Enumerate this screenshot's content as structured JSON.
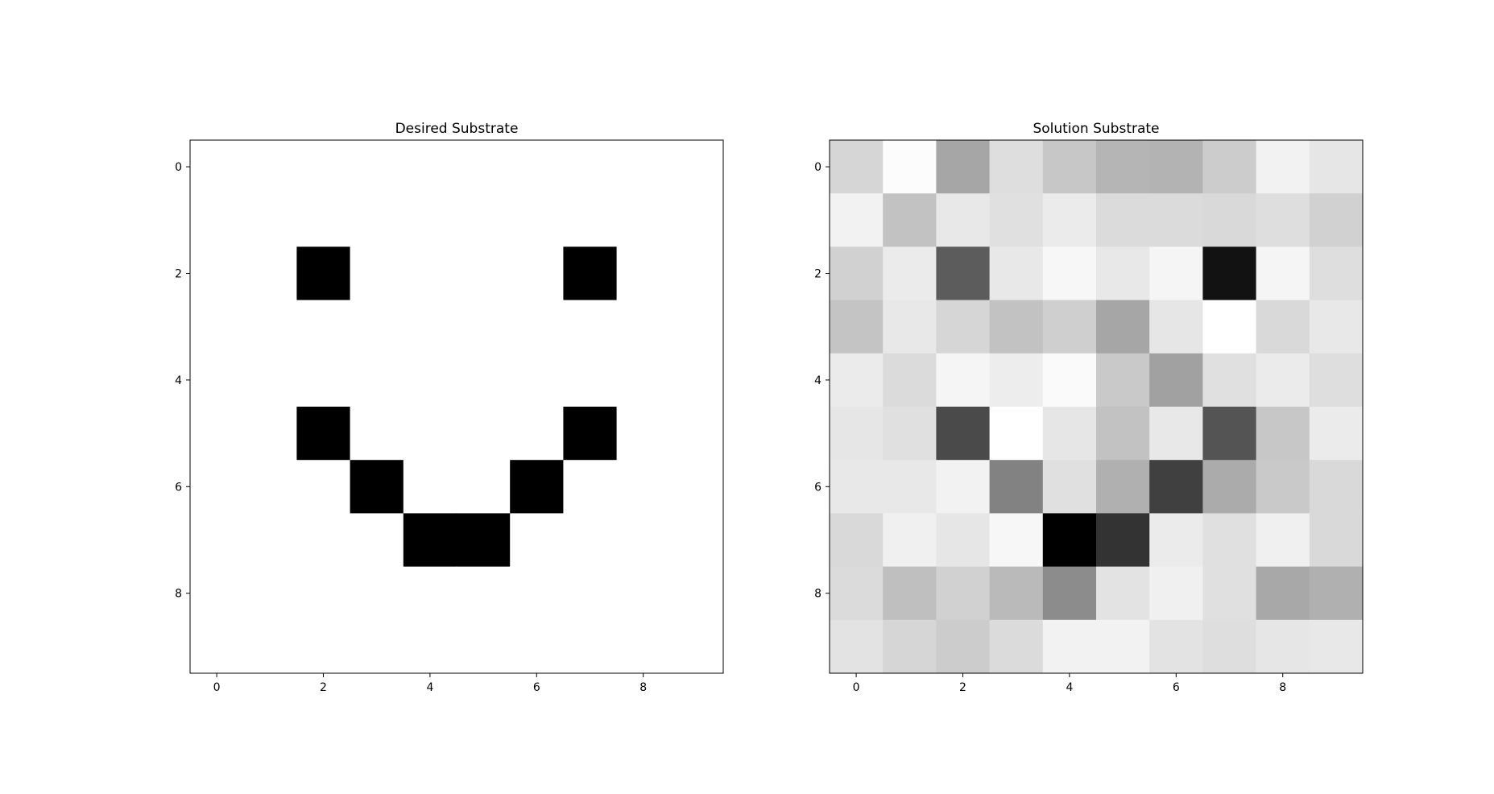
{
  "chart_data": [
    {
      "type": "heatmap",
      "title": "Desired Substrate",
      "colormap": "gray",
      "xticks": [
        "0",
        "2",
        "4",
        "6",
        "8"
      ],
      "yticks": [
        "0",
        "2",
        "4",
        "6",
        "8"
      ],
      "xlim": [
        -0.5,
        9.5
      ],
      "ylim": [
        9.5,
        -0.5
      ],
      "values": [
        [
          1,
          1,
          1,
          1,
          1,
          1,
          1,
          1,
          1,
          1
        ],
        [
          1,
          1,
          1,
          1,
          1,
          1,
          1,
          1,
          1,
          1
        ],
        [
          1,
          1,
          0,
          1,
          1,
          1,
          1,
          0,
          1,
          1
        ],
        [
          1,
          1,
          1,
          1,
          1,
          1,
          1,
          1,
          1,
          1
        ],
        [
          1,
          1,
          1,
          1,
          1,
          1,
          1,
          1,
          1,
          1
        ],
        [
          1,
          1,
          0,
          1,
          1,
          1,
          1,
          0,
          1,
          1
        ],
        [
          1,
          1,
          1,
          0,
          1,
          1,
          0,
          1,
          1,
          1
        ],
        [
          1,
          1,
          1,
          1,
          0,
          0,
          1,
          1,
          1,
          1
        ],
        [
          1,
          1,
          1,
          1,
          1,
          1,
          1,
          1,
          1,
          1
        ],
        [
          1,
          1,
          1,
          1,
          1,
          1,
          1,
          1,
          1,
          1
        ]
      ]
    },
    {
      "type": "heatmap",
      "title": "Solution Substrate",
      "colormap": "gray",
      "xticks": [
        "0",
        "2",
        "4",
        "6",
        "8"
      ],
      "yticks": [
        "0",
        "2",
        "4",
        "6",
        "8"
      ],
      "xlim": [
        -0.5,
        9.5
      ],
      "ylim": [
        9.5,
        -0.5
      ],
      "values": [
        [
          0.84,
          0.99,
          0.65,
          0.87,
          0.78,
          0.71,
          0.7,
          0.8,
          0.95,
          0.9
        ],
        [
          0.95,
          0.76,
          0.91,
          0.88,
          0.92,
          0.86,
          0.86,
          0.85,
          0.87,
          0.82
        ],
        [
          0.82,
          0.92,
          0.36,
          0.91,
          0.97,
          0.91,
          0.96,
          0.07,
          0.96,
          0.87
        ],
        [
          0.77,
          0.91,
          0.84,
          0.76,
          0.81,
          0.65,
          0.9,
          1.0,
          0.85,
          0.91
        ],
        [
          0.92,
          0.86,
          0.96,
          0.93,
          0.98,
          0.79,
          0.63,
          0.88,
          0.92,
          0.87
        ],
        [
          0.9,
          0.88,
          0.29,
          1.0,
          0.9,
          0.76,
          0.91,
          0.33,
          0.78,
          0.92
        ],
        [
          0.91,
          0.91,
          0.95,
          0.51,
          0.88,
          0.69,
          0.25,
          0.67,
          0.79,
          0.85
        ],
        [
          0.85,
          0.94,
          0.9,
          0.97,
          0.0,
          0.2,
          0.92,
          0.88,
          0.94,
          0.85
        ],
        [
          0.86,
          0.75,
          0.82,
          0.73,
          0.55,
          0.89,
          0.94,
          0.88,
          0.66,
          0.69
        ],
        [
          0.89,
          0.84,
          0.8,
          0.86,
          0.95,
          0.95,
          0.89,
          0.87,
          0.9,
          0.91
        ]
      ]
    }
  ]
}
